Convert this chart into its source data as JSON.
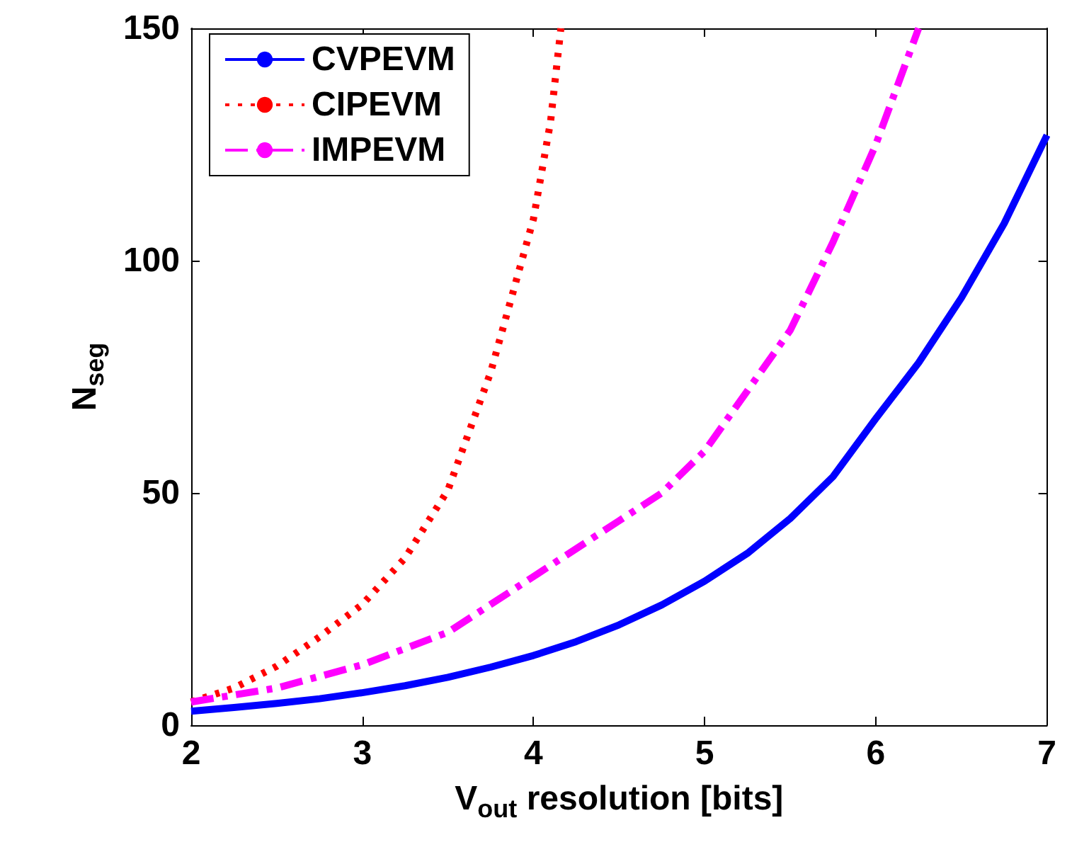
{
  "chart_data": {
    "type": "line",
    "xlabel": "V$_{out}$ resolution [bits]",
    "ylabel": "N$_{seg}$",
    "xlim": [
      2,
      7
    ],
    "xticks": [
      2,
      3,
      4,
      5,
      6,
      7
    ],
    "ylim": [
      0,
      150
    ],
    "yticks": [
      0,
      50,
      100,
      150
    ],
    "grid": false,
    "legend": "top left",
    "marker": "none",
    "series": [
      {
        "name": "CVPEVM",
        "color": "#0000ff",
        "line_style": "solid",
        "x": [
          2,
          2.25,
          2.5,
          2.75,
          3,
          3.25,
          3.5,
          3.75,
          4,
          4.25,
          4.5,
          4.75,
          5,
          5.25,
          5.5,
          5.75,
          6,
          6.25,
          6.5,
          6.75,
          7
        ],
        "values": [
          3,
          3.8,
          4.7,
          5.7,
          7,
          8.5,
          10.3,
          12.5,
          15,
          18,
          21.6,
          25.9,
          31,
          37,
          44.5,
          53.5,
          66,
          78,
          92,
          108,
          127
        ]
      },
      {
        "name": "CIPEVM",
        "color": "#ff0000",
        "line_style": "dotted",
        "x": [
          2,
          2.25,
          2.5,
          2.75,
          3,
          3.25,
          3.5,
          3.75,
          4,
          4.1,
          4.16
        ],
        "values": [
          5,
          8,
          12.7,
          19,
          26,
          36,
          50.6,
          76,
          109,
          130,
          150
        ]
      },
      {
        "name": "IMPEVM",
        "color": "#ff00ff",
        "line_style": "dashdot",
        "x": [
          2,
          2.5,
          3,
          3.5,
          4,
          4.5,
          4.75,
          5,
          5.5,
          5.75,
          6,
          6.25
        ],
        "values": [
          5,
          8,
          13,
          20,
          32,
          44,
          50,
          59,
          85,
          104,
          125,
          150
        ]
      }
    ]
  }
}
